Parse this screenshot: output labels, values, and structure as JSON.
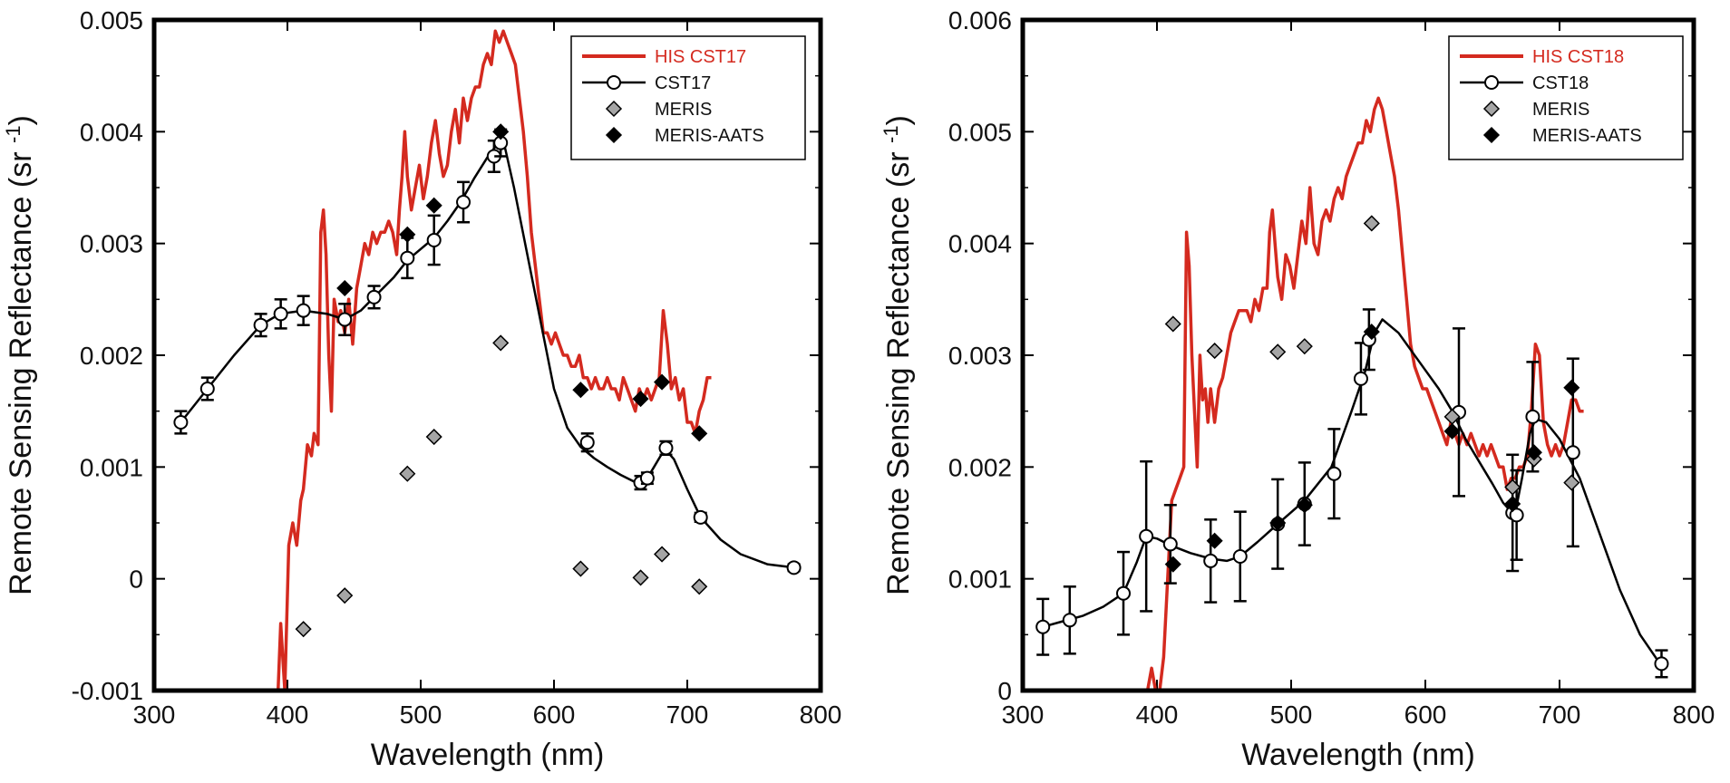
{
  "colors": {
    "red": "#d42a1f",
    "black": "#000000",
    "gray": "#a5a5a5"
  },
  "chart_data": [
    {
      "type": "line",
      "title": "",
      "xlabel": "Wavelength (nm)",
      "ylabel_main": "Remote Sensing Reflectance (sr",
      "ylabel_sup": "-1",
      "ylabel_close": ")",
      "xlim": [
        300,
        800
      ],
      "ylim": [
        -0.001,
        0.005
      ],
      "xticks": [
        300,
        400,
        500,
        600,
        700,
        800
      ],
      "yticks": [
        -0.001,
        0,
        0.001,
        0.002,
        0.003,
        0.004,
        0.005
      ],
      "xtick_labels": [
        "300",
        "400",
        "500",
        "600",
        "700",
        "800"
      ],
      "ytick_labels": [
        "-0.001",
        "0",
        "0.001",
        "0.002",
        "0.003",
        "0.004",
        "0.005"
      ],
      "legend": {
        "position": "top-right",
        "entries": [
          "HIS CST17",
          "CST17",
          "MERIS",
          "MERIS-AATS"
        ]
      },
      "series": [
        {
          "name": "HIS CST17",
          "kind": "line",
          "x": [
            393,
            395,
            398,
            401,
            404,
            407,
            410,
            412,
            415,
            418,
            420,
            423,
            425,
            427,
            429,
            431,
            433,
            435,
            438,
            440,
            443,
            446,
            449,
            452,
            455,
            458,
            461,
            464,
            467,
            470,
            473,
            476,
            479,
            482,
            484,
            486,
            488,
            490,
            493,
            496,
            499,
            502,
            505,
            508,
            511,
            514,
            517,
            520,
            523,
            526,
            529,
            532,
            535,
            538,
            541,
            544,
            547,
            550,
            553,
            556,
            559,
            562,
            565,
            568,
            571,
            574,
            577,
            580,
            583,
            586,
            589,
            592,
            595,
            598,
            601,
            604,
            607,
            610,
            613,
            616,
            619,
            622,
            625,
            628,
            631,
            634,
            637,
            640,
            643,
            646,
            649,
            652,
            655,
            658,
            661,
            664,
            667,
            670,
            673,
            676,
            679,
            682,
            685,
            688,
            691,
            694,
            697,
            700,
            703,
            706,
            709,
            712,
            715,
            718
          ],
          "y": [
            -0.001,
            -0.0004,
            -0.001,
            0.0003,
            0.0005,
            0.0003,
            0.0007,
            0.0008,
            0.0012,
            0.0011,
            0.0013,
            0.0012,
            0.0031,
            0.0033,
            0.0029,
            0.002,
            0.0015,
            0.0025,
            0.0023,
            0.0024,
            0.0022,
            0.0025,
            0.0021,
            0.0026,
            0.0028,
            0.003,
            0.0029,
            0.0031,
            0.003,
            0.0031,
            0.0031,
            0.0032,
            0.0031,
            0.0029,
            0.0033,
            0.0036,
            0.004,
            0.0036,
            0.0033,
            0.0035,
            0.0037,
            0.0034,
            0.0036,
            0.0039,
            0.0041,
            0.0038,
            0.0036,
            0.0037,
            0.004,
            0.0042,
            0.0039,
            0.0043,
            0.0041,
            0.0043,
            0.0044,
            0.0044,
            0.0046,
            0.0047,
            0.0046,
            0.0049,
            0.0048,
            0.0049,
            0.0048,
            0.0047,
            0.0046,
            0.0043,
            0.004,
            0.0036,
            0.0031,
            0.0028,
            0.0025,
            0.0022,
            0.0022,
            0.0021,
            0.0022,
            0.0021,
            0.002,
            0.002,
            0.0019,
            0.0019,
            0.002,
            0.0018,
            0.0018,
            0.0017,
            0.0018,
            0.0017,
            0.0017,
            0.0018,
            0.0017,
            0.0017,
            0.0016,
            0.0018,
            0.0017,
            0.0016,
            0.0015,
            0.0017,
            0.0016,
            0.0017,
            0.0016,
            0.0017,
            0.0018,
            0.0024,
            0.0021,
            0.0017,
            0.0018,
            0.0016,
            0.0017,
            0.0014,
            0.0014,
            0.0013,
            0.0015,
            0.0016,
            0.0018,
            0.0018
          ]
        },
        {
          "name": "CST17 curve",
          "kind": "curve",
          "x": [
            320,
            340,
            360,
            380,
            390,
            400,
            412,
            430,
            443,
            455,
            465,
            480,
            490,
            500,
            510,
            520,
            530,
            540,
            550,
            558,
            563,
            570,
            580,
            590,
            600,
            610,
            620,
            630,
            640,
            650,
            660,
            665,
            670,
            675,
            680,
            684,
            690,
            700,
            710,
            725,
            740,
            760,
            780
          ],
          "y": [
            0.0014,
            0.0017,
            0.002,
            0.00227,
            0.00234,
            0.00238,
            0.0024,
            0.00237,
            0.00232,
            0.0024,
            0.00252,
            0.0027,
            0.00285,
            0.00295,
            0.00305,
            0.0032,
            0.00337,
            0.00358,
            0.00377,
            0.0039,
            0.00387,
            0.0035,
            0.0029,
            0.0023,
            0.0017,
            0.00135,
            0.00118,
            0.00108,
            0.001,
            0.00093,
            0.00087,
            0.00086,
            0.0009,
            0.001,
            0.0011,
            0.00115,
            0.00107,
            0.0008,
            0.00055,
            0.00035,
            0.00022,
            0.00013,
            0.0001
          ]
        },
        {
          "name": "CST17",
          "kind": "markers",
          "x": [
            320,
            340,
            380,
            395,
            412,
            443,
            465,
            490,
            510,
            532,
            555,
            560,
            625,
            665,
            670,
            684,
            710,
            780
          ],
          "y": [
            0.0014,
            0.0017,
            0.00227,
            0.00237,
            0.0024,
            0.00232,
            0.00252,
            0.00287,
            0.00303,
            0.00337,
            0.00378,
            0.0039,
            0.00122,
            0.00086,
            0.0009,
            0.00117,
            0.00055,
            0.0001
          ],
          "err": [
            0.0001,
            0.0001,
            0.0001,
            0.00013,
            0.00013,
            0.00014,
            0.0001,
            0.00018,
            0.00022,
            0.00018,
            0.00014,
            0.00012,
            8e-05,
            6e-05,
            5e-05,
            6e-05,
            4e-05,
            3e-05
          ]
        },
        {
          "name": "MERIS",
          "kind": "gray-diamond",
          "x": [
            412,
            443,
            490,
            510,
            560,
            620,
            665,
            681,
            709
          ],
          "y": [
            -0.00045,
            -0.00015,
            0.00094,
            0.00127,
            0.00211,
            9e-05,
            1e-05,
            0.00022,
            -7e-05
          ]
        },
        {
          "name": "MERIS-AATS",
          "kind": "black-diamond",
          "x": [
            443,
            490,
            510,
            560,
            620,
            665,
            681,
            709
          ],
          "y": [
            0.0026,
            0.00308,
            0.00334,
            0.004,
            0.00169,
            0.00161,
            0.00176,
            0.0013
          ]
        }
      ]
    },
    {
      "type": "line",
      "title": "",
      "xlabel": "Wavelength (nm)",
      "ylabel_main": "Remote Sensing Reflectance (sr",
      "ylabel_sup": "-1",
      "ylabel_close": ")",
      "xlim": [
        300,
        800
      ],
      "ylim": [
        0,
        0.006
      ],
      "xticks": [
        300,
        400,
        500,
        600,
        700,
        800
      ],
      "yticks": [
        0,
        0.001,
        0.002,
        0.003,
        0.004,
        0.005,
        0.006
      ],
      "xtick_labels": [
        "300",
        "400",
        "500",
        "600",
        "700",
        "800"
      ],
      "ytick_labels": [
        "0",
        "0.001",
        "0.002",
        "0.003",
        "0.004",
        "0.005",
        "0.006"
      ],
      "legend": {
        "position": "top-right",
        "entries": [
          "HIS CST18",
          "CST18",
          "MERIS",
          "MERIS-AATS"
        ]
      },
      "series": [
        {
          "name": "HIS CST18",
          "kind": "line",
          "x": [
            393,
            396,
            399,
            402,
            405,
            408,
            411,
            414,
            417,
            420,
            422,
            424,
            426,
            428,
            430,
            432,
            434,
            436,
            438,
            440,
            443,
            446,
            449,
            452,
            455,
            458,
            461,
            464,
            467,
            470,
            473,
            476,
            479,
            482,
            484,
            486,
            488,
            490,
            493,
            496,
            499,
            502,
            505,
            508,
            511,
            514,
            517,
            520,
            523,
            526,
            529,
            532,
            535,
            538,
            541,
            544,
            547,
            550,
            553,
            556,
            559,
            562,
            565,
            568,
            571,
            574,
            577,
            580,
            583,
            586,
            589,
            592,
            595,
            598,
            601,
            604,
            607,
            610,
            613,
            616,
            619,
            622,
            625,
            628,
            631,
            634,
            637,
            640,
            643,
            646,
            649,
            652,
            655,
            658,
            661,
            664,
            667,
            670,
            673,
            676,
            679,
            682,
            685,
            688,
            691,
            694,
            697,
            700,
            703,
            706,
            709,
            712,
            715,
            718
          ],
          "y": [
            0.0,
            0.0002,
            0.0,
            0.0,
            0.0003,
            0.001,
            0.0017,
            0.0018,
            0.0019,
            0.002,
            0.0041,
            0.0038,
            0.003,
            0.0025,
            0.002,
            0.003,
            0.0026,
            0.0027,
            0.0024,
            0.0027,
            0.0024,
            0.0027,
            0.0028,
            0.003,
            0.0032,
            0.0033,
            0.0034,
            0.0034,
            0.0034,
            0.0033,
            0.0035,
            0.0034,
            0.0036,
            0.0036,
            0.0041,
            0.0043,
            0.004,
            0.0037,
            0.0035,
            0.0039,
            0.0038,
            0.0036,
            0.0039,
            0.0042,
            0.004,
            0.0045,
            0.004,
            0.0039,
            0.0042,
            0.0043,
            0.0042,
            0.0044,
            0.0045,
            0.0044,
            0.0046,
            0.0047,
            0.0048,
            0.0049,
            0.0049,
            0.0051,
            0.005,
            0.0052,
            0.0053,
            0.0052,
            0.005,
            0.0048,
            0.0046,
            0.0043,
            0.0039,
            0.0035,
            0.0031,
            0.0029,
            0.0028,
            0.0027,
            0.0027,
            0.0026,
            0.0025,
            0.0024,
            0.0023,
            0.0022,
            0.0024,
            0.0023,
            0.0022,
            0.0023,
            0.0022,
            0.0023,
            0.0022,
            0.0021,
            0.0022,
            0.0021,
            0.0022,
            0.0021,
            0.002,
            0.002,
            0.0018,
            0.0019,
            0.0019,
            0.002,
            0.002,
            0.0021,
            0.0025,
            0.0031,
            0.003,
            0.0024,
            0.0022,
            0.0021,
            0.0022,
            0.0021,
            0.0022,
            0.0024,
            0.0026,
            0.0026,
            0.0025,
            0.0025
          ]
        },
        {
          "name": "CST18 curve",
          "kind": "curve",
          "x": [
            315,
            330,
            345,
            360,
            375,
            385,
            392,
            400,
            410,
            425,
            440,
            452,
            462,
            475,
            490,
            510,
            530,
            545,
            555,
            562,
            568,
            580,
            595,
            610,
            620,
            630,
            640,
            650,
            658,
            664,
            668,
            672,
            678,
            682,
            690,
            700,
            715,
            730,
            745,
            760,
            776
          ],
          "y": [
            0.00057,
            0.00062,
            0.00067,
            0.00075,
            0.00087,
            0.00115,
            0.00138,
            0.00136,
            0.0013,
            0.00123,
            0.00118,
            0.00116,
            0.0012,
            0.00133,
            0.00149,
            0.0017,
            0.002,
            0.0025,
            0.00285,
            0.0032,
            0.00332,
            0.0032,
            0.00295,
            0.0027,
            0.0025,
            0.00225,
            0.00205,
            0.00185,
            0.00168,
            0.0016,
            0.00165,
            0.0019,
            0.0023,
            0.00243,
            0.0024,
            0.00225,
            0.0019,
            0.0014,
            0.0009,
            0.0005,
            0.00022
          ]
        },
        {
          "name": "CST18",
          "kind": "markers",
          "x": [
            315,
            335,
            375,
            392,
            410,
            440,
            462,
            490,
            510,
            532,
            552,
            558,
            625,
            665,
            668,
            680,
            710,
            776
          ],
          "y": [
            0.00057,
            0.00063,
            0.00087,
            0.00138,
            0.00131,
            0.00116,
            0.0012,
            0.00149,
            0.00167,
            0.00194,
            0.00279,
            0.00314,
            0.00249,
            0.00159,
            0.00157,
            0.00245,
            0.00213,
            0.00024
          ],
          "err": [
            0.00025,
            0.0003,
            0.00037,
            0.00067,
            0.00035,
            0.00037,
            0.0004,
            0.0004,
            0.00037,
            0.0004,
            0.00032,
            0.00027,
            0.00075,
            0.00052,
            0.0004,
            0.00049,
            0.00084,
            0.00012
          ]
        },
        {
          "name": "MERIS",
          "kind": "gray-diamond",
          "x": [
            412,
            443,
            490,
            510,
            560,
            620,
            665,
            681,
            709
          ],
          "y": [
            0.00328,
            0.00304,
            0.00303,
            0.00308,
            0.00418,
            0.00245,
            0.00182,
            0.00207,
            0.00186
          ]
        },
        {
          "name": "MERIS-AATS",
          "kind": "black-diamond",
          "x": [
            412,
            443,
            490,
            510,
            560,
            620,
            665,
            681,
            709
          ],
          "y": [
            0.00113,
            0.00134,
            0.0015,
            0.00166,
            0.00321,
            0.00232,
            0.00167,
            0.00213,
            0.00271
          ]
        }
      ]
    }
  ]
}
